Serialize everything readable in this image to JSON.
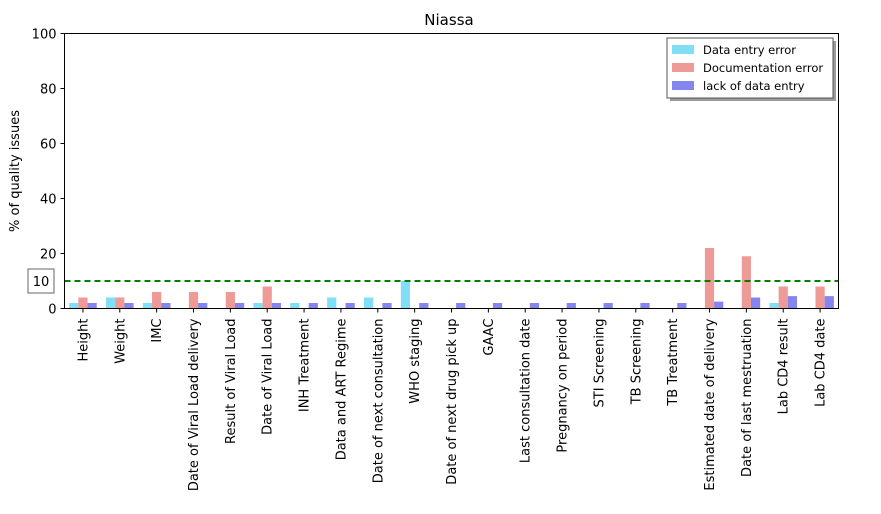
{
  "chart_data": {
    "type": "bar",
    "title": "Niassa",
    "xlabel": "",
    "ylabel": "% of quality issues",
    "ylim": [
      0,
      100
    ],
    "yticks": [
      0,
      20,
      40,
      60,
      80,
      100
    ],
    "grid": false,
    "legend_position": "top-right",
    "reference_line": {
      "value": 10,
      "label": "10",
      "color": "#008000",
      "style": "dashed"
    },
    "categories": [
      "Height",
      "Weight",
      "IMC",
      "Date of Viral Load delivery",
      "Result of Viral Load",
      "Date of Viral Load",
      "INH Treatment",
      "Data and ART Regime",
      "Date of next consultation",
      "WHO staging",
      "Date of next drug pick up",
      "GAAC",
      "Last consultation date",
      "Pregnancy on period",
      "STI Screening",
      "TB Screening",
      "TB Treatment",
      "Estimated date of delivery",
      "Date of last mestruation",
      "Lab CD4 result",
      "Lab CD4 date"
    ],
    "series": [
      {
        "name": "Data entry error",
        "color": "#80dff7",
        "values": [
          2,
          4,
          2,
          0,
          0,
          2,
          2,
          4,
          4,
          10,
          0,
          0,
          0,
          0,
          0,
          0,
          0,
          0,
          0,
          2,
          0
        ]
      },
      {
        "name": "Documentation error",
        "color": "#ee9a96",
        "values": [
          4,
          4,
          6,
          6,
          6,
          8,
          0,
          0,
          0,
          0,
          0,
          0,
          0,
          0,
          0,
          0,
          0,
          22,
          19,
          8,
          8
        ]
      },
      {
        "name": "lack of data entry",
        "color": "#8585ee",
        "values": [
          2,
          2,
          2,
          2,
          2,
          2,
          2,
          2,
          2,
          2,
          2,
          2,
          2,
          2,
          2,
          2,
          2,
          2.5,
          4,
          4.5,
          4.5
        ]
      }
    ]
  }
}
